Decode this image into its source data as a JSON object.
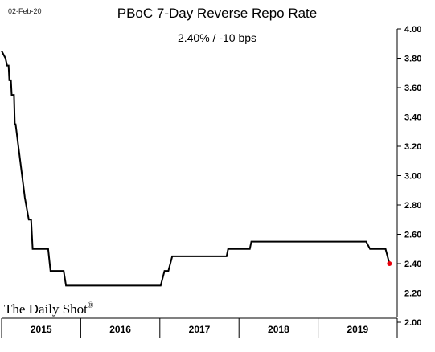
{
  "date_stamp": "02-Feb-20",
  "brand": "The Daily Shot",
  "brand_mark": "®",
  "chart_data": {
    "type": "line",
    "title": "PBoC 7-Day Reverse Repo Rate",
    "subtitle": "2.40%  /  -10 bps",
    "ylim": [
      2.0,
      4.0
    ],
    "yticks": [
      "4.00",
      "3.80",
      "3.60",
      "3.40",
      "3.20",
      "3.00",
      "2.80",
      "2.60",
      "2.40",
      "2.20",
      "2.00"
    ],
    "x_categories": [
      "2015",
      "2016",
      "2017",
      "2018",
      "2019"
    ],
    "xlim": [
      2015.0,
      2020.1
    ],
    "series": [
      {
        "color": "#000000",
        "x": [
          2015.0,
          2015.05,
          2015.07,
          2015.09,
          2015.1,
          2015.12,
          2015.13,
          2015.16,
          2015.17,
          2015.18,
          2015.3,
          2015.35,
          2015.38,
          2015.4,
          2015.6,
          2015.63,
          2015.8,
          2015.83,
          2016.1,
          2016.5,
          2016.95,
          2017.05,
          2017.1,
          2017.15,
          2017.2,
          2017.5,
          2017.9,
          2017.92,
          2018.1,
          2018.2,
          2018.22,
          2018.5,
          2019.0,
          2019.5,
          2019.7,
          2019.75,
          2019.95,
          2020.0
        ],
        "y": [
          3.85,
          3.8,
          3.75,
          3.75,
          3.65,
          3.65,
          3.55,
          3.55,
          3.35,
          3.35,
          2.85,
          2.7,
          2.7,
          2.5,
          2.5,
          2.35,
          2.35,
          2.25,
          2.25,
          2.25,
          2.25,
          2.25,
          2.35,
          2.35,
          2.45,
          2.45,
          2.45,
          2.5,
          2.5,
          2.5,
          2.55,
          2.55,
          2.55,
          2.55,
          2.55,
          2.5,
          2.5,
          2.4
        ]
      }
    ],
    "last_point": {
      "x": 2020.0,
      "y": 2.4,
      "color": "#e8000b"
    },
    "grid": false
  }
}
